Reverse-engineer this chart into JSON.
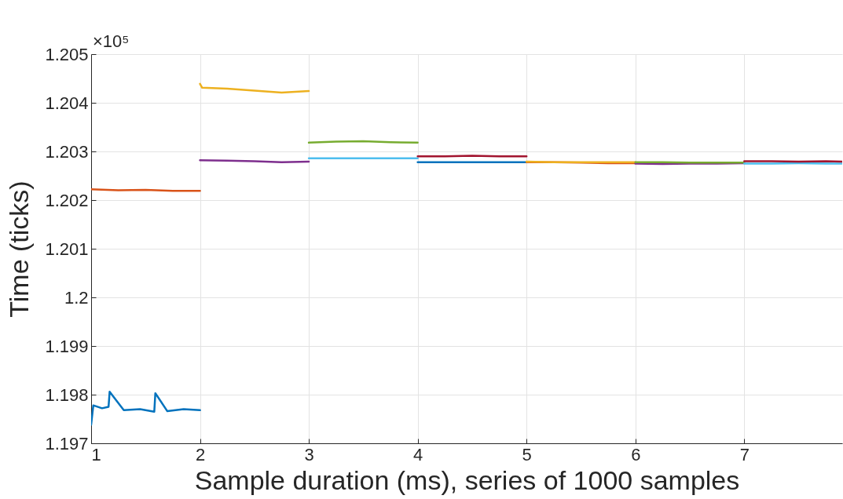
{
  "chart_data": {
    "type": "line",
    "xlabel": "Sample duration (ms), series of 1000 samples",
    "ylabel": "Time (ticks)",
    "annotations": [
      "×10⁵"
    ],
    "xlim": [
      1,
      7.9
    ],
    "ylim": [
      1.197,
      1.205
    ],
    "xticks": [
      1,
      2,
      3,
      4,
      5,
      6,
      7
    ],
    "yticks": [
      1.197,
      1.198,
      1.199,
      1.2,
      1.201,
      1.202,
      1.203,
      1.204,
      1.205
    ],
    "grid": true,
    "legend": false,
    "marker": "none",
    "line_style": "solid",
    "series": [
      {
        "color": "#0072bd",
        "x": [
          1,
          1.02,
          1.1,
          1.16,
          1.17,
          1.3,
          1.45,
          1.58,
          1.59,
          1.7,
          1.85,
          2
        ],
        "values": [
          1.19738,
          1.19778,
          1.19772,
          1.19775,
          1.19806,
          1.19768,
          1.1977,
          1.19765,
          1.19803,
          1.19766,
          1.1977,
          1.19768
        ]
      },
      {
        "color": "#d95319",
        "x": [
          1,
          1.25,
          1.5,
          1.75,
          2
        ],
        "values": [
          1.20222,
          1.2022,
          1.20221,
          1.20219,
          1.20219
        ]
      },
      {
        "color": "#edb120",
        "x": [
          2,
          2.02,
          2.25,
          2.5,
          2.75,
          3
        ],
        "values": [
          1.20439,
          1.20431,
          1.20429,
          1.20425,
          1.20421,
          1.20424
        ]
      },
      {
        "color": "#7e2f8e",
        "x": [
          2,
          2.25,
          2.5,
          2.75,
          3
        ],
        "values": [
          1.20282,
          1.20281,
          1.2028,
          1.20278,
          1.20279
        ]
      },
      {
        "color": "#77ac30",
        "x": [
          3,
          3.25,
          3.5,
          3.75,
          4
        ],
        "values": [
          1.20318,
          1.2032,
          1.20321,
          1.20319,
          1.20318
        ]
      },
      {
        "color": "#4dbeee",
        "x": [
          3,
          3.25,
          3.5,
          3.75,
          4
        ],
        "values": [
          1.20286,
          1.20286,
          1.20286,
          1.20286,
          1.20286
        ]
      },
      {
        "color": "#a2142f",
        "x": [
          4,
          4.25,
          4.5,
          4.75,
          5
        ],
        "values": [
          1.2029,
          1.2029,
          1.20291,
          1.2029,
          1.2029
        ]
      },
      {
        "color": "#0072bd",
        "x": [
          4,
          4.25,
          4.5,
          4.75,
          5
        ],
        "values": [
          1.20278,
          1.20278,
          1.20278,
          1.20278,
          1.20278
        ]
      },
      {
        "color": "#d95319",
        "x": [
          5,
          5.25,
          5.5,
          5.75,
          6
        ],
        "values": [
          1.20278,
          1.20278,
          1.20277,
          1.20276,
          1.20276
        ]
      },
      {
        "color": "#edb120",
        "x": [
          5,
          5.25,
          5.5,
          5.75,
          6
        ],
        "values": [
          1.20279,
          1.20278,
          1.20278,
          1.20278,
          1.20278
        ]
      },
      {
        "color": "#7e2f8e",
        "x": [
          6,
          6.25,
          6.5,
          6.75,
          7
        ],
        "values": [
          1.20275,
          1.20274,
          1.20275,
          1.20275,
          1.20276
        ]
      },
      {
        "color": "#77ac30",
        "x": [
          6,
          6.25,
          6.5,
          6.75,
          7
        ],
        "values": [
          1.20278,
          1.20278,
          1.20277,
          1.20277,
          1.20277
        ]
      },
      {
        "color": "#4dbeee",
        "x": [
          7,
          7.25,
          7.5,
          7.75,
          7.9
        ],
        "values": [
          1.20275,
          1.20275,
          1.20276,
          1.20275,
          1.20275
        ]
      },
      {
        "color": "#a2142f",
        "x": [
          7,
          7.25,
          7.5,
          7.75,
          7.9
        ],
        "values": [
          1.2028,
          1.2028,
          1.20279,
          1.2028,
          1.20279
        ]
      }
    ]
  }
}
